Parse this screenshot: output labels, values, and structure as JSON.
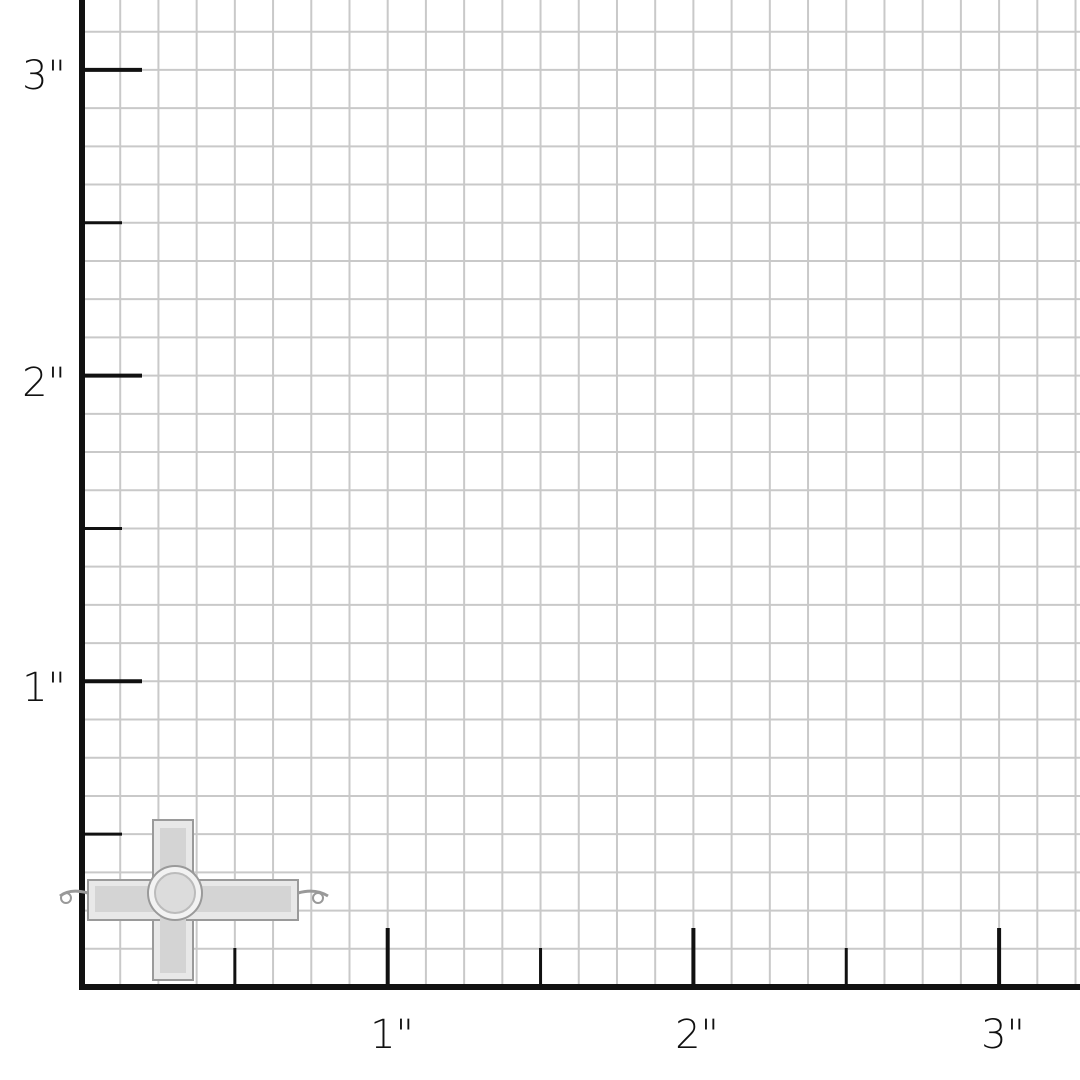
{
  "ruler": {
    "unit": "inch",
    "x_labels": [
      "1\"",
      "2\"",
      "3\""
    ],
    "y_labels": [
      "1\"",
      "2\"",
      "3\""
    ],
    "subdivisions_per_inch": 8
  },
  "product": {
    "icon": "cross-pendant-with-gemstones"
  },
  "colors": {
    "grid": "#c9c9c9",
    "axis": "#111111",
    "metal": "#e6e6e6"
  }
}
